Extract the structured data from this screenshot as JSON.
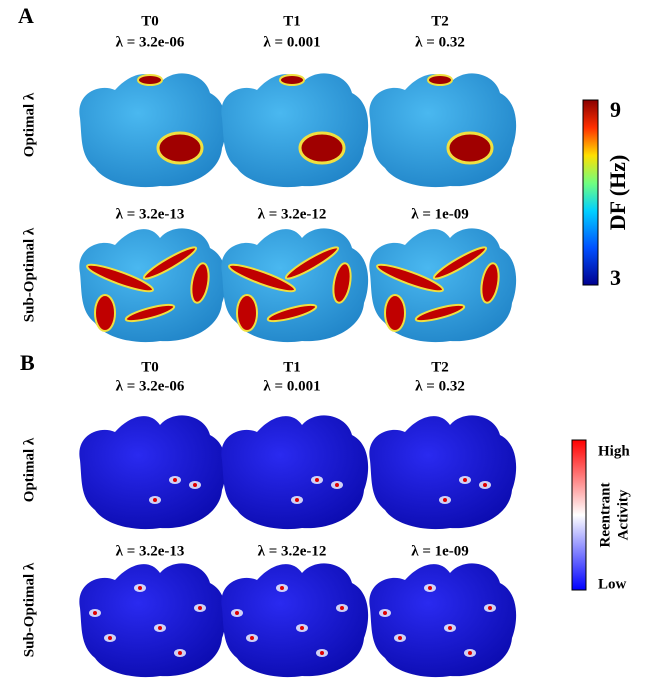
{
  "panels": [
    {
      "label": "A",
      "columns": [
        {
          "name": "T0",
          "optimal_lambda": "λ = 3.2e-06",
          "suboptimal_lambda": "λ = 3.2e-13"
        },
        {
          "name": "T1",
          "optimal_lambda": "λ = 0.001",
          "suboptimal_lambda": "λ = 3.2e-12"
        },
        {
          "name": "T2",
          "optimal_lambda": "λ = 0.32",
          "suboptimal_lambda": "λ = 1e-09"
        }
      ],
      "rows": [
        "Optimal λ",
        "Sub-Optimal λ"
      ],
      "colorbar": {
        "title": [
          "DF (Hz)"
        ],
        "max": "9",
        "min": "3"
      }
    },
    {
      "label": "B",
      "columns": [
        {
          "name": "T0",
          "optimal_lambda": "λ = 3.2e-06",
          "suboptimal_lambda": "λ = 3.2e-13"
        },
        {
          "name": "T1",
          "optimal_lambda": "λ = 0.001",
          "suboptimal_lambda": "λ = 3.2e-12"
        },
        {
          "name": "T2",
          "optimal_lambda": "λ = 0.32",
          "suboptimal_lambda": "λ = 1e-09"
        }
      ],
      "rows": [
        "Optimal λ",
        "Sub-Optimal λ"
      ],
      "colorbar": {
        "title": [
          "Reentrant",
          "Activity"
        ],
        "max": "High",
        "min": "Low"
      }
    }
  ]
}
